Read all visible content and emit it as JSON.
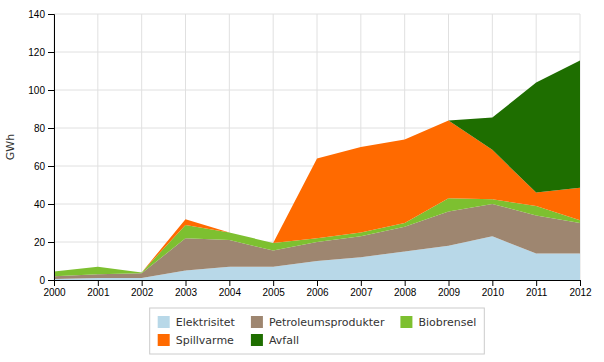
{
  "chart_data": {
    "type": "area",
    "stacked": true,
    "x": [
      2000,
      2001,
      2002,
      2003,
      2004,
      2005,
      2006,
      2007,
      2008,
      2009,
      2010,
      2011,
      2012
    ],
    "series": [
      {
        "name": "Elektrisitet",
        "color": "#b8d8e8",
        "values": [
          0.5,
          1.0,
          1.0,
          5.0,
          7.0,
          7.0,
          10.0,
          12.0,
          15.0,
          18.0,
          23.0,
          14.0,
          14.0
        ]
      },
      {
        "name": "Petroleumsprodukter",
        "color": "#9e8670",
        "values": [
          1.5,
          2.0,
          2.5,
          17.0,
          14.0,
          8.5,
          10.0,
          11.0,
          13.0,
          18.0,
          17.0,
          20.0,
          16.0
        ]
      },
      {
        "name": "Biobrensel",
        "color": "#7dc030",
        "values": [
          2.5,
          4.0,
          0.5,
          7.0,
          4.0,
          4.0,
          2.0,
          2.0,
          2.0,
          7.0,
          2.5,
          5.0,
          1.5
        ]
      },
      {
        "name": "Spillvarme",
        "color": "#ff6a00",
        "values": [
          0.0,
          0.0,
          0.0,
          3.0,
          0.0,
          0.0,
          42.0,
          45.0,
          44.0,
          41.0,
          26.0,
          7.0,
          17.0
        ]
      },
      {
        "name": "Avfall",
        "color": "#1e6e00",
        "values": [
          0.0,
          0.0,
          0.0,
          0.0,
          0.0,
          0.0,
          0.0,
          0.0,
          0.0,
          0.0,
          17.0,
          58.0,
          67.0
        ]
      }
    ],
    "ylabel": "GWh",
    "xlim": [
      2000,
      2012
    ],
    "xticks": [
      2000,
      2001,
      2002,
      2003,
      2004,
      2005,
      2006,
      2007,
      2008,
      2009,
      2010,
      2011,
      2012
    ],
    "ylim": [
      0,
      140
    ],
    "yticks": [
      0,
      20,
      40,
      60,
      80,
      100,
      120,
      140
    ],
    "grid": true,
    "legend": "bottom"
  }
}
